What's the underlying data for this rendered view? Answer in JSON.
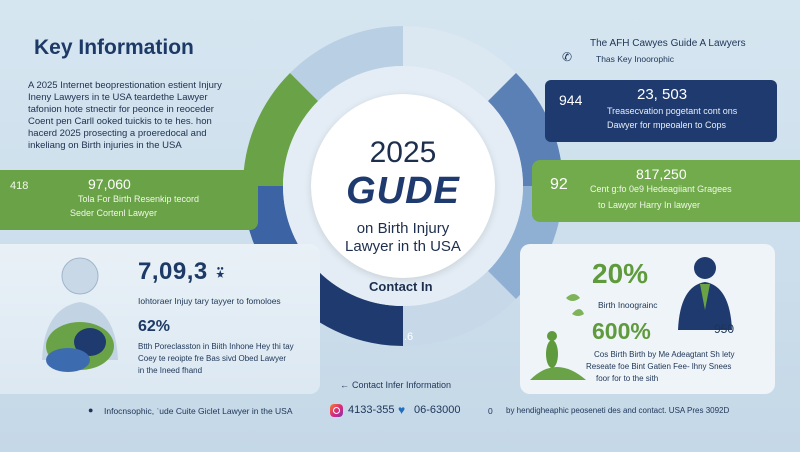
{
  "header": {
    "title": "Key Information",
    "intro": "A 2025 Internet beoprestionation estient Injury Ineny Lawyers in te USA teardethe Lawyer tafonion hote stnectir for peonce in reoceder Coent pen Carll ooked tuickis to te hes. hon hacerd 2025 prosecting a proeredocal and inkeliang on Birth injuries in the USA"
  },
  "top_right": {
    "tagline": "The AFH Cawyes Guide A Lawyers",
    "subtag": "Thas Key Inoorophic",
    "phone_icon": "phone-icon",
    "phone_glyph": "✆"
  },
  "left_pill": {
    "num": "418",
    "big": "97,060",
    "line1": "Tola For Birth Resenkip tecord",
    "line2": "Seder Cortenl Lawyer"
  },
  "right_top_pill": {
    "num": "944",
    "big": "23, 503",
    "line1": "Treasecvation pogetant cont ons",
    "line2": "Dawyer for mpeoalen to Cops"
  },
  "right_mid_pill": {
    "num": "92",
    "big": "817,250",
    "line1": "Cent g:fo 0e9 Hedeagiiant Gragees",
    "line2": "to Lawyor Harry In lawyer"
  },
  "center": {
    "year": "2025",
    "guide": "GUDE",
    "sub1": "on Birth Injury",
    "sub2": "Lawyer in th USA",
    "contact": "Contact In",
    "ring_num": ".6"
  },
  "left_panel": {
    "stat1": "7,09,3",
    "stat1_suffix": "⍣",
    "stat1_text": "Iohtoraer Injuy tary tayyer to fomoloes",
    "stat2": "62%",
    "stat2_t1": "Btth Poreclasston in Biith Inhone Hey thi tay",
    "stat2_t2": "Coey te reoipte fre Bas sivd Obed Lawyer",
    "stat2_t3": "in the Ineed fhand"
  },
  "right_panel": {
    "pct1": "20%",
    "pct1_text": "Birth Inoograinc",
    "pct2": "600%",
    "side_num": "950",
    "pct2_t1": "Cos Birth Birth by Me Adeagtant Sh lety",
    "pct2_t2": "Reseate foe Bint Gatien Fee- lhny Snees",
    "pct2_t3": "foor for to the sith"
  },
  "contact_line": "Contact Infer Information",
  "footer": {
    "left": "Infocnsophic, ˈude Cuite Giclet Lawyer in the USA",
    "phone1": "4133-355",
    "phone2": "06-63000",
    "zero": "0",
    "right": "by hendigheaphic peoseneti des and contact. USA Pres 3092D"
  },
  "colors": {
    "navy": "#1f3a6e",
    "green": "#6aa347",
    "light_blue": "#c5d8e7",
    "mid_blue": "#4a6fa5"
  }
}
